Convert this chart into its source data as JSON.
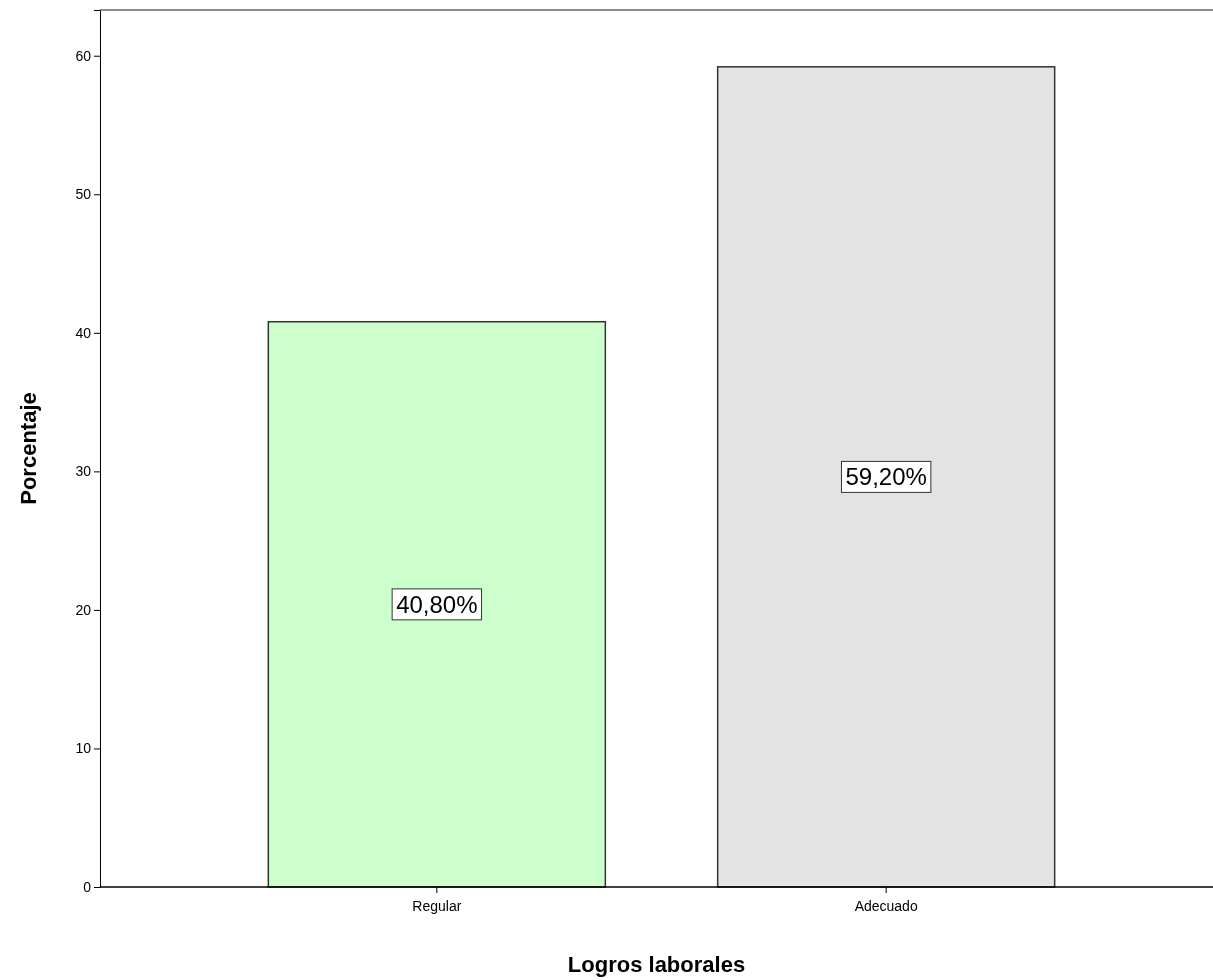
{
  "chart_data": {
    "type": "bar",
    "xlabel": "Logros laborales",
    "ylabel": "Porcentaje",
    "categories": [
      "Regular",
      "Adecuado"
    ],
    "values": [
      40.8,
      59.2
    ],
    "colors": [
      "#ccffcc",
      "#e3e3e3"
    ],
    "value_labels": [
      "40,80%",
      "59,20%"
    ],
    "ylim": [
      0,
      63.3
    ],
    "yticks": [
      0,
      10,
      20,
      30,
      40,
      50,
      60
    ],
    "grid": false
  }
}
